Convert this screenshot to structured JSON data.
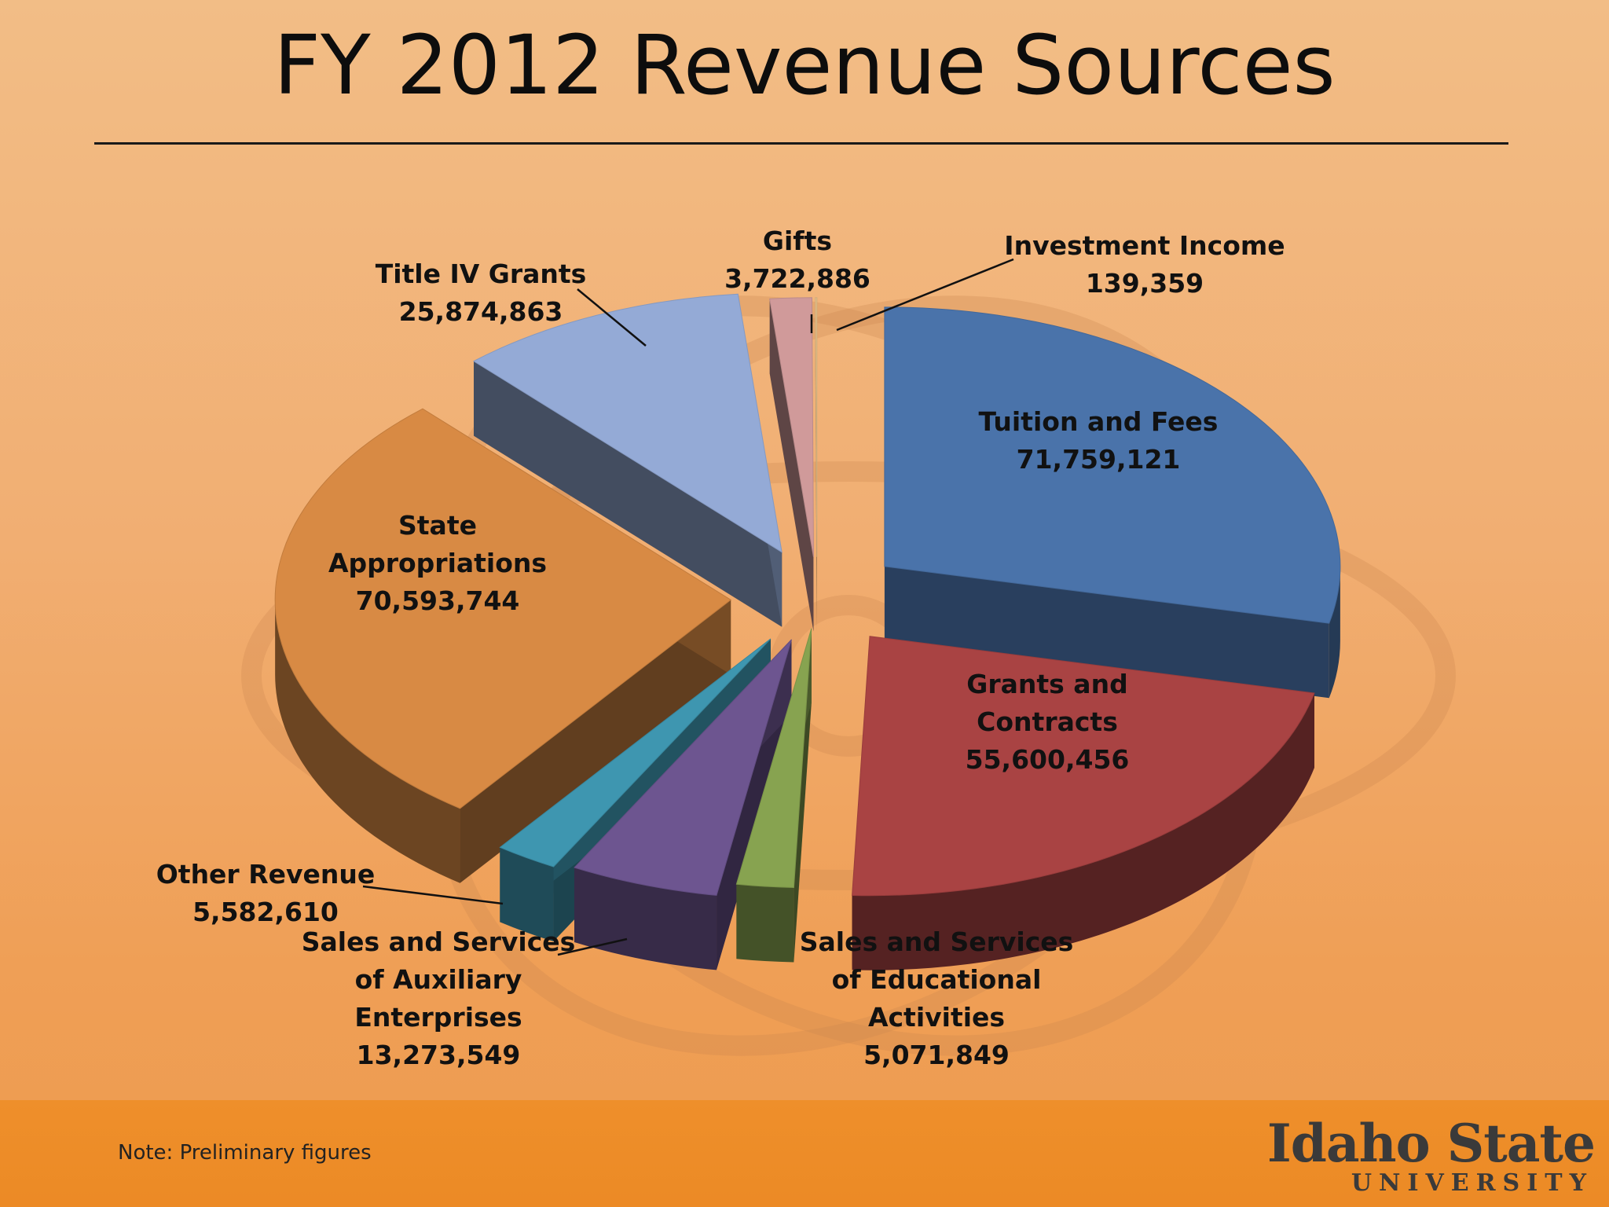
{
  "slide": {
    "title": "FY 2012 Revenue Sources",
    "note": "Note:  Preliminary figures",
    "logo_main": "Idaho State",
    "logo_sub": "UNIVERSITY"
  },
  "chart_data": {
    "type": "pie",
    "title": "FY 2012 Revenue Sources",
    "style": "3d-exploded",
    "slices": [
      {
        "name": "Tuition and Fees",
        "label_lines": [
          "Tuition and Fees"
        ],
        "value": 71759121,
        "value_label": "71,759,121",
        "color": "#4a73aa"
      },
      {
        "name": "Grants and Contracts",
        "label_lines": [
          "Grants and",
          "Contracts"
        ],
        "value": 55600456,
        "value_label": "55,600,456",
        "color": "#a94343"
      },
      {
        "name": "Sales and Services of Educational Activities",
        "label_lines": [
          "Sales and Services",
          "of Educational",
          "Activities"
        ],
        "value": 5071849,
        "value_label": "5,071,849",
        "color": "#87a350"
      },
      {
        "name": "Sales and Services of Auxiliary Enterprises",
        "label_lines": [
          "Sales and Services",
          "of Auxiliary",
          "Enterprises"
        ],
        "value": 13273549,
        "value_label": "13,273,549",
        "color": "#6d5590"
      },
      {
        "name": "Other Revenue",
        "label_lines": [
          "Other Revenue"
        ],
        "value": 5582610,
        "value_label": "5,582,610",
        "color": "#3e96b0"
      },
      {
        "name": "State Appropriations",
        "label_lines": [
          "State",
          "Appropriations"
        ],
        "value": 70593744,
        "value_label": "70,593,744",
        "color": "#d88a44"
      },
      {
        "name": "Title IV Grants",
        "label_lines": [
          "Title IV Grants"
        ],
        "value": 25874863,
        "value_label": "25,874,863",
        "color": "#94aad6"
      },
      {
        "name": "Gifts",
        "label_lines": [
          "Gifts"
        ],
        "value": 3722886,
        "value_label": "3,722,886",
        "color": "#d09a9a"
      },
      {
        "name": "Investment Income",
        "label_lines": [
          "Investment Income"
        ],
        "value": 139359,
        "value_label": "139,359",
        "color": "#e6c08a"
      }
    ]
  }
}
